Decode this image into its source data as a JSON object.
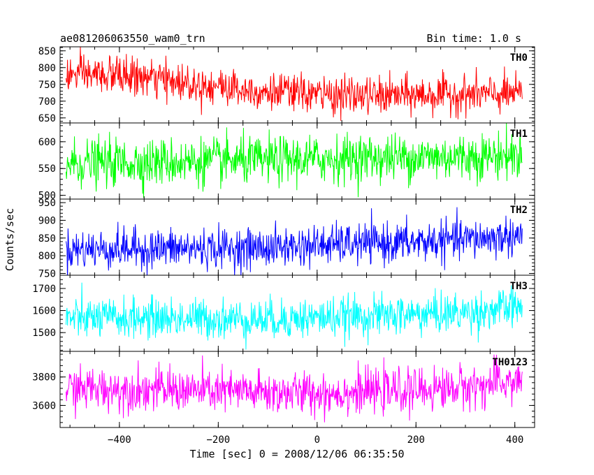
{
  "chart_data": {
    "type": "line",
    "title_left": "ae081206063550_wam0_trn",
    "title_right": "Bin time: 1.0 s",
    "xlabel": "Time [sec] 0 = 2008/12/06 06:35:50",
    "ylabel": "Counts/sec",
    "xlim": [
      -520,
      440
    ],
    "xticks": [
      -400,
      -200,
      0,
      200,
      400
    ],
    "xtick_labels": [
      "−400",
      "−200",
      "0",
      "200",
      "400"
    ],
    "series_x_range": [
      -508,
      415
    ],
    "panels": [
      {
        "name": "TH0",
        "color": "#ff0000",
        "ylim": [
          635,
          862
        ],
        "yticks": [
          650,
          700,
          750,
          800,
          850
        ],
        "ytick_labels": [
          "650",
          "700",
          "750",
          "800",
          "850"
        ],
        "trend": [
          [
            -508,
            778
          ],
          [
            -400,
            778
          ],
          [
            -300,
            760
          ],
          [
            -200,
            745
          ],
          [
            -100,
            728
          ],
          [
            0,
            720
          ],
          [
            100,
            715
          ],
          [
            200,
            718
          ],
          [
            300,
            720
          ],
          [
            415,
            720
          ]
        ],
        "noise": 28
      },
      {
        "name": "TH1",
        "color": "#00ff00",
        "ylim": [
          493,
          635
        ],
        "yticks": [
          500,
          550,
          600
        ],
        "ytick_labels": [
          "500",
          "550",
          "600"
        ],
        "trend": [
          [
            -508,
            560
          ],
          [
            -300,
            562
          ],
          [
            -100,
            565
          ],
          [
            100,
            570
          ],
          [
            300,
            572
          ],
          [
            415,
            575
          ]
        ],
        "noise": 22
      },
      {
        "name": "TH2",
        "color": "#0000ff",
        "ylim": [
          745,
          960
        ],
        "yticks": [
          750,
          800,
          850,
          900,
          950
        ],
        "ytick_labels": [
          "750",
          "800",
          "850",
          "900",
          "950"
        ],
        "trend": [
          [
            -508,
            818
          ],
          [
            -300,
            820
          ],
          [
            -100,
            822
          ],
          [
            0,
            830
          ],
          [
            200,
            838
          ],
          [
            350,
            850
          ],
          [
            415,
            858
          ]
        ],
        "noise": 28
      },
      {
        "name": "TH3",
        "color": "#00ffff",
        "ylim": [
          1415,
          1760
        ],
        "yticks": [
          1500,
          1600,
          1700
        ],
        "ytick_labels": [
          "1500",
          "1600",
          "1700"
        ],
        "trend": [
          [
            -508,
            1565
          ],
          [
            -300,
            1565
          ],
          [
            -100,
            1560
          ],
          [
            100,
            1575
          ],
          [
            300,
            1590
          ],
          [
            415,
            1615
          ]
        ],
        "noise": 45
      },
      {
        "name": "TH0123",
        "color": "#ff00ff",
        "ylim": [
          3445,
          3980
        ],
        "yticks": [
          3600,
          3800
        ],
        "ytick_labels": [
          "3600",
          "3800"
        ],
        "trend": [
          [
            -508,
            3720
          ],
          [
            -300,
            3710
          ],
          [
            -100,
            3690
          ],
          [
            0,
            3685
          ],
          [
            200,
            3705
          ],
          [
            350,
            3745
          ],
          [
            415,
            3780
          ]
        ],
        "noise": 75
      }
    ]
  }
}
